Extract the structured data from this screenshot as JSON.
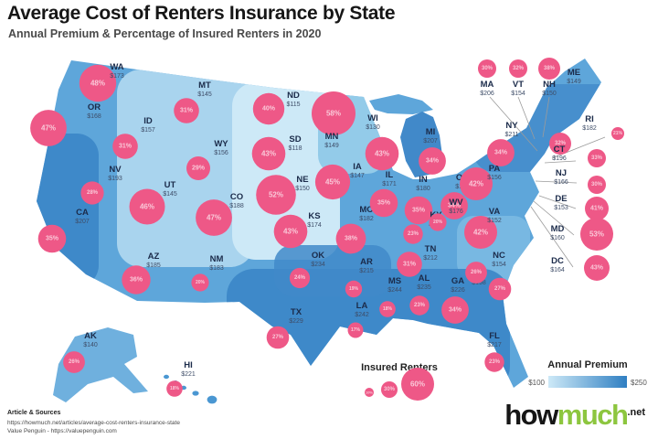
{
  "title": "Average Cost of Renters Insurance by State",
  "subtitle": "Annual Premium & Percentage of Insured Renters in 2020",
  "legend": {
    "insured_renters": {
      "label": "Insured Renters",
      "sizes": [
        "10%",
        "30%",
        "60%"
      ]
    },
    "annual_premium": {
      "label": "Annual Premium",
      "min": "$100",
      "max": "$250"
    }
  },
  "footer": {
    "sources_heading": "Article & Sources",
    "source_line1": "https://howmuch.net/articles/average-cost-renters-insurance-state",
    "source_line2": "Value Penguin - https://valuepenguin.com"
  },
  "logo": {
    "word1": "how",
    "word2": "much",
    "domain": ".net"
  },
  "colors": {
    "bubble_pink": "#ee5887",
    "map_dark_blue": "#3b86c7",
    "map_mid_blue": "#5ea6da",
    "map_light_blue": "#a9d4ee",
    "map_pale_blue": "#cde9f7",
    "logo_green": "#8dc63f"
  },
  "chart_data": {
    "type": "map",
    "region": "United States",
    "year": "2020",
    "bubble_metric": "Percentage of Insured Renters",
    "choropleth_metric": "Annual Premium",
    "premium_scale": {
      "min": "$100",
      "max": "$250"
    },
    "states": [
      {
        "abbr": "WA",
        "premium": "$173",
        "insured": "48%"
      },
      {
        "abbr": "OR",
        "premium": "$168",
        "insured": "47%"
      },
      {
        "abbr": "CA",
        "premium": "$207",
        "insured": "35%"
      },
      {
        "abbr": "NV",
        "premium": "$193",
        "insured": "28%"
      },
      {
        "abbr": "ID",
        "premium": "$157",
        "insured": "31%"
      },
      {
        "abbr": "MT",
        "premium": "$145",
        "insured": "31%"
      },
      {
        "abbr": "WY",
        "premium": "$156",
        "insured": "29%"
      },
      {
        "abbr": "UT",
        "premium": "$145",
        "insured": "46%"
      },
      {
        "abbr": "CO",
        "premium": "$188",
        "insured": "47%"
      },
      {
        "abbr": "AZ",
        "premium": "$185",
        "insured": "36%"
      },
      {
        "abbr": "NM",
        "premium": "$183",
        "insured": "20%"
      },
      {
        "abbr": "ND",
        "premium": "$115",
        "insured": "40%"
      },
      {
        "abbr": "SD",
        "premium": "$118",
        "insured": "43%"
      },
      {
        "abbr": "NE",
        "premium": "$150",
        "insured": "52%"
      },
      {
        "abbr": "KS",
        "premium": "$174",
        "insured": "43%"
      },
      {
        "abbr": "OK",
        "premium": "$234",
        "insured": "24%"
      },
      {
        "abbr": "TX",
        "premium": "$229",
        "insured": "27%"
      },
      {
        "abbr": "MN",
        "premium": "$149",
        "insured": "58%"
      },
      {
        "abbr": "IA",
        "premium": "$147",
        "insured": "45%"
      },
      {
        "abbr": "MO",
        "premium": "$182",
        "insured": "38%"
      },
      {
        "abbr": "AR",
        "premium": "$215",
        "insured": "19%"
      },
      {
        "abbr": "LA",
        "premium": "$242",
        "insured": "17%"
      },
      {
        "abbr": "WI",
        "premium": "$130",
        "insured": "43%"
      },
      {
        "abbr": "IL",
        "premium": "$171",
        "insured": "35%"
      },
      {
        "abbr": "MI",
        "premium": "$207",
        "insured": "34%"
      },
      {
        "abbr": "IN",
        "premium": "$180",
        "insured": "35%"
      },
      {
        "abbr": "OH",
        "premium": "$185",
        "insured": "34%"
      },
      {
        "abbr": "KY",
        "premium": "$171",
        "insured": "23%"
      },
      {
        "abbr": "TN",
        "premium": "$212",
        "insured": "31%"
      },
      {
        "abbr": "MS",
        "premium": "$244",
        "insured": "18%"
      },
      {
        "abbr": "AL",
        "premium": "$235",
        "insured": "23%"
      },
      {
        "abbr": "GA",
        "premium": "$226",
        "insured": "34%"
      },
      {
        "abbr": "SC",
        "premium": "$198",
        "insured": "27%"
      },
      {
        "abbr": "NC",
        "premium": "$154",
        "insured": "26%"
      },
      {
        "abbr": "VA",
        "premium": "$152",
        "insured": "42%"
      },
      {
        "abbr": "WV",
        "premium": "$176",
        "insured": "20%"
      },
      {
        "abbr": "PA",
        "premium": "$156",
        "insured": "42%"
      },
      {
        "abbr": "NY",
        "premium": "$211",
        "insured": "34%"
      },
      {
        "abbr": "ME",
        "premium": "$149",
        "insured": "32%"
      },
      {
        "abbr": "MA",
        "premium": "$206",
        "insured": "30%"
      },
      {
        "abbr": "VT",
        "premium": "$154",
        "insured": "32%"
      },
      {
        "abbr": "NH",
        "premium": "$150",
        "insured": "38%"
      },
      {
        "abbr": "RI",
        "premium": "$182",
        "insured": "21%"
      },
      {
        "abbr": "CT",
        "premium": "$196",
        "insured": "33%"
      },
      {
        "abbr": "NJ",
        "premium": "$166",
        "insured": "30%"
      },
      {
        "abbr": "DE",
        "premium": "$153",
        "insured": "41%"
      },
      {
        "abbr": "MD",
        "premium": "$160",
        "insured": "53%"
      },
      {
        "abbr": "DC",
        "premium": "$164",
        "insured": "43%"
      },
      {
        "abbr": "FL",
        "premium": "$217",
        "insured": "23%"
      },
      {
        "abbr": "AK",
        "premium": "$140",
        "insured": "26%"
      },
      {
        "abbr": "HI",
        "premium": "$221",
        "insured": "18%"
      }
    ]
  }
}
